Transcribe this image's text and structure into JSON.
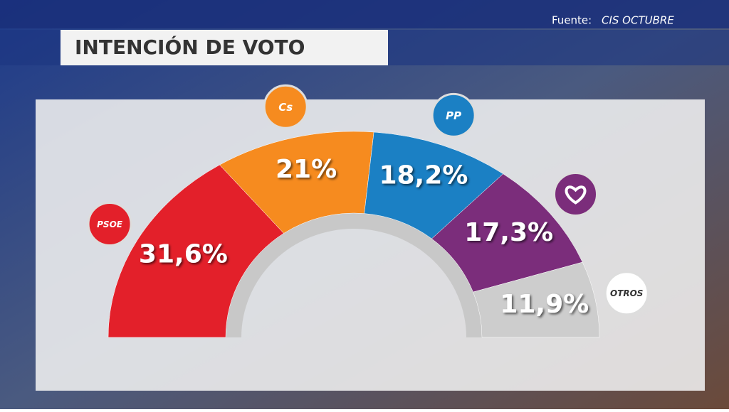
{
  "chart_data": {
    "type": "donut",
    "title": "INTENCIÓN DE VOTO",
    "source_label": "Fuente:",
    "source": "CIS OCTUBRE",
    "categories": [
      "PSOE",
      "Cs",
      "PP",
      null,
      "OTROS"
    ],
    "values": [
      31.6,
      21,
      18.2,
      17.3,
      11.9
    ],
    "value_labels": [
      "31,6%",
      "21%",
      "18,2%",
      "17,3%",
      "11,9%"
    ],
    "colors": [
      "#e3202a",
      "#f68b1f",
      "#1b80c4",
      "#7b2d7b",
      "#cdcdcd"
    ]
  }
}
